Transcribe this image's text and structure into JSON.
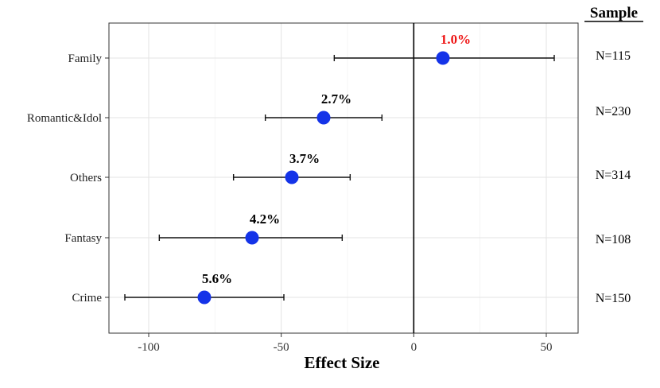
{
  "chart_data": {
    "type": "scatter",
    "subtype": "forest-plot",
    "xlabel": "Effect Size",
    "xlim": [
      -115,
      62
    ],
    "xticks": [
      -100,
      -50,
      0,
      50
    ],
    "xtick_labels": [
      "-100",
      "-50",
      "0",
      "50"
    ],
    "reference_line_x": 0,
    "grid": true,
    "right_header": "Sample",
    "point_color": "#1433e8",
    "highlight_color": "#ee1111",
    "rows": [
      {
        "category": "Family",
        "estimate": 11,
        "lower": -30,
        "upper": 53,
        "label": "1.0%",
        "label_highlight": true,
        "n_label": "N=115"
      },
      {
        "category": "Romantic&Idol",
        "estimate": -34,
        "lower": -56,
        "upper": -12,
        "label": "2.7%",
        "label_highlight": false,
        "n_label": "N=230"
      },
      {
        "category": "Others",
        "estimate": -46,
        "lower": -68,
        "upper": -24,
        "label": "3.7%",
        "label_highlight": false,
        "n_label": "N=314"
      },
      {
        "category": "Fantasy",
        "estimate": -61,
        "lower": -96,
        "upper": -27,
        "label": "4.2%",
        "label_highlight": false,
        "n_label": "N=108"
      },
      {
        "category": "Crime",
        "estimate": -79,
        "lower": -109,
        "upper": -49,
        "label": "5.6%",
        "label_highlight": false,
        "n_label": "N=150"
      }
    ]
  }
}
